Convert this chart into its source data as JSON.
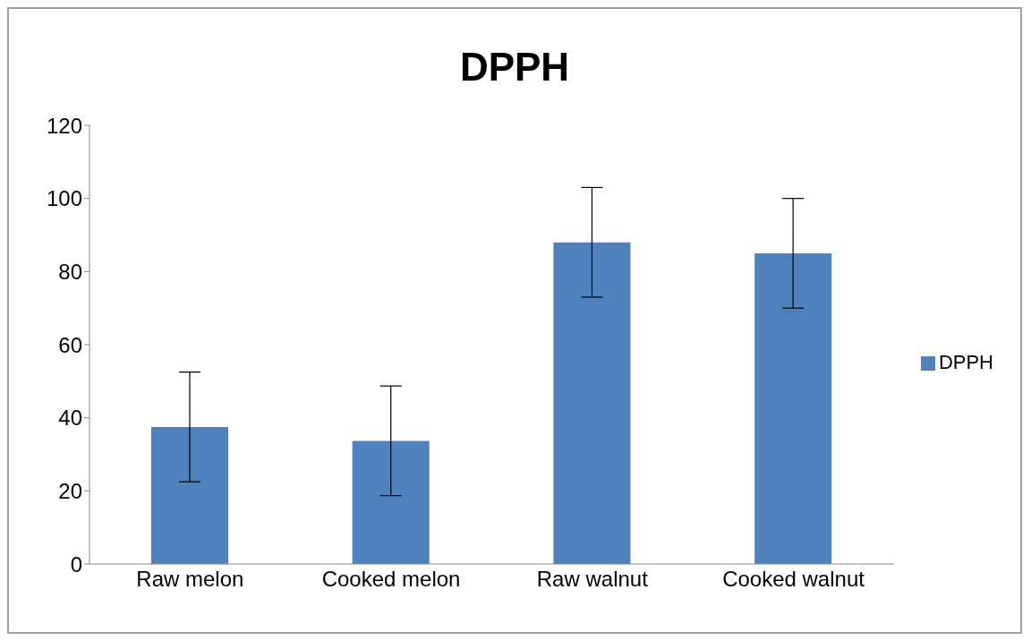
{
  "chart_data": {
    "type": "bar",
    "title": "DPPH",
    "categories": [
      "Raw melon",
      "Cooked melon",
      "Raw  walnut",
      "Cooked walnut"
    ],
    "series": [
      {
        "name": "DPPH",
        "color": "#4f81bd",
        "values": [
          37.5,
          33.7,
          88,
          85
        ],
        "errors": [
          15,
          15,
          15,
          15
        ]
      }
    ],
    "ylim": [
      0,
      120
    ],
    "yticks": [
      0,
      20,
      40,
      60,
      80,
      100,
      120
    ],
    "legend": "right"
  }
}
